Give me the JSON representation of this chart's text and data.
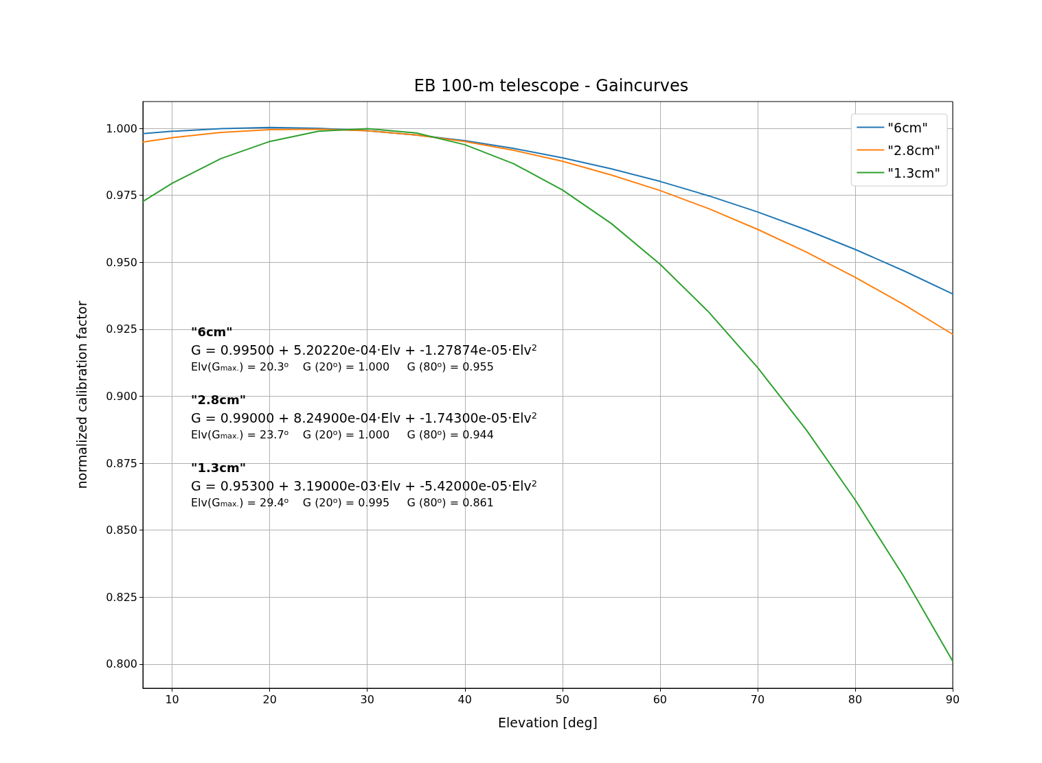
{
  "chart_data": {
    "type": "line",
    "title": "EB 100-m telescope - Gaincurves",
    "xlabel": "Elevation [deg]",
    "ylabel": "normalized calibration factor",
    "x": [
      7,
      10,
      15,
      20,
      25,
      30,
      35,
      40,
      45,
      50,
      55,
      60,
      65,
      70,
      75,
      80,
      85,
      90
    ],
    "series": [
      {
        "name": "\"6cm\"",
        "color": "#1f77b4",
        "values": [
          0.998,
          0.9989,
          0.9999,
          1.0003,
          1.0,
          0.9991,
          0.9975,
          0.9954,
          0.9925,
          0.989,
          0.9849,
          0.9802,
          0.9748,
          0.9688,
          0.9621,
          0.9548,
          0.9468,
          0.9382
        ]
      },
      {
        "name": "\"2.8cm\"",
        "color": "#ff7f0e",
        "values": [
          0.9949,
          0.9965,
          0.9985,
          0.9995,
          0.9997,
          0.9991,
          0.9975,
          0.9951,
          0.9918,
          0.9877,
          0.9826,
          0.9768,
          0.97,
          0.9623,
          0.9538,
          0.9444,
          0.9342,
          0.9231
        ]
      },
      {
        "name": "\"1.3cm\"",
        "color": "#2ca02c",
        "values": [
          0.9727,
          0.9795,
          0.9887,
          0.9951,
          0.9989,
          0.9999,
          0.9983,
          0.9939,
          0.9868,
          0.977,
          0.9645,
          0.9493,
          0.9314,
          0.9107,
          0.8874,
          0.8613,
          0.8326,
          0.8011
        ]
      }
    ],
    "xlim": [
      7,
      90
    ],
    "xticks": [
      10,
      20,
      30,
      40,
      50,
      60,
      70,
      80,
      90
    ],
    "ylim": [
      0.791,
      1.01
    ],
    "yticks": [
      {
        "value": 0.8,
        "label": "0.800"
      },
      {
        "value": 0.825,
        "label": "0.825"
      },
      {
        "value": 0.85,
        "label": "0.850"
      },
      {
        "value": 0.875,
        "label": "0.875"
      },
      {
        "value": 0.9,
        "label": "0.900"
      },
      {
        "value": 0.925,
        "label": "0.925"
      },
      {
        "value": 0.95,
        "label": "0.950"
      },
      {
        "value": 0.975,
        "label": "0.975"
      },
      {
        "value": 1,
        "label": "1.000"
      }
    ],
    "annotations": [
      "\"6cm\"",
      "G = 0.99500 + 5.20220e-04·Elv + -1.27874e-05·Elv$^{2}$",
      "Elv(G$_{max.}$) = 20.3$^{o}$    G (20$^{o}$) = 1.000     G (80$^{o}$) = 0.955",
      "\"2.8cm\"",
      "G = 0.99000 + 8.24900e-04·Elv + -1.74300e-05·Elv$^{2}$",
      "Elv(G$_{max.}$) = 23.7$^{o}$    G (20$^{o}$) = 1.000     G (80$^{o}$) = 0.944",
      "\"1.3cm\"",
      "G = 0.95300 + 3.19000e-03·Elv + -5.42000e-05·Elv$^{2}$",
      "Elv(G$_{max.}$) = 29.4$^{o}$    G (20$^{o}$) = 0.995     G (80$^{o}$) = 0.861"
    ],
    "grid": true,
    "legend": "top right",
    "marker": "none",
    "line_style": "solid"
  }
}
